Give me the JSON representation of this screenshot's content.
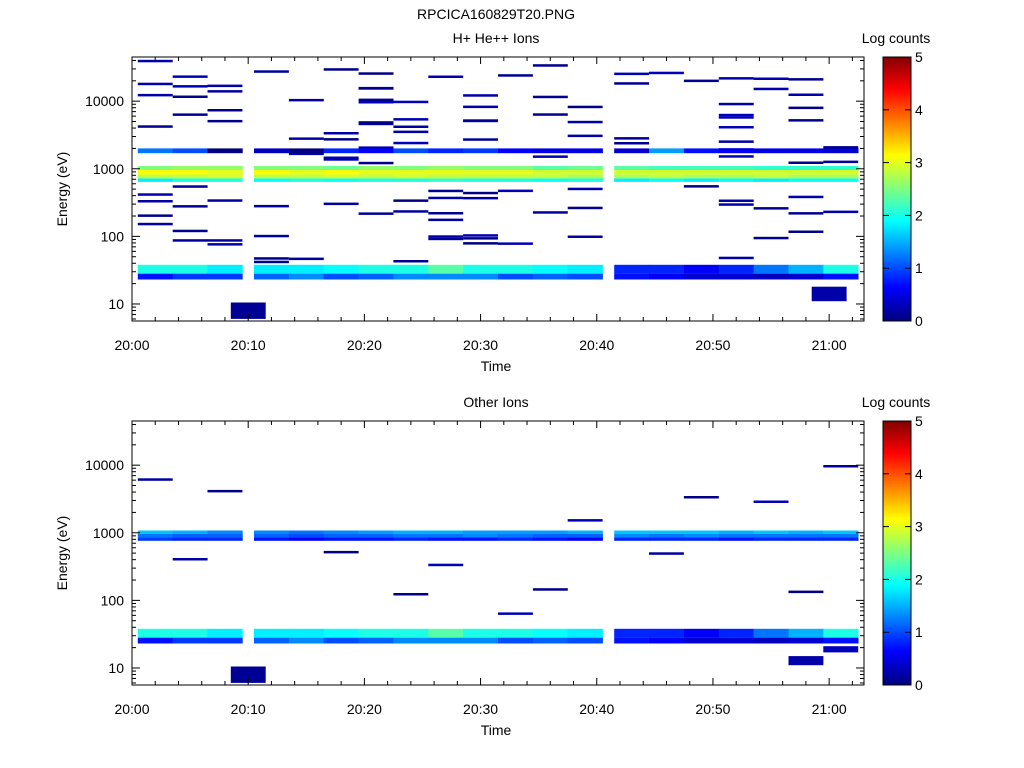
{
  "page": {
    "title": "RPCICA160829T20.PNG"
  },
  "colorbar": {
    "label": "Log counts",
    "ticks": [
      "0",
      "1",
      "2",
      "3",
      "4",
      "5"
    ],
    "colormap": "jet",
    "range": [
      0,
      5
    ]
  },
  "chart_data": [
    {
      "type": "heatmap",
      "title": "H+ He++ Ions",
      "xlabel": "Time",
      "ylabel": "Energy (eV)",
      "xlim": [
        "20:00",
        "21:03"
      ],
      "ylim": [
        5.6,
        45000
      ],
      "yscale": "log",
      "x_ticks": [
        "20:00",
        "20:10",
        "20:20",
        "20:30",
        "20:40",
        "20:50",
        "21:00"
      ],
      "y_ticks": [
        "10",
        "100",
        "1000",
        "10000"
      ],
      "colorbar_label": "Log counts",
      "time_bins": [
        "20:02",
        "20:05",
        "20:08",
        "20:12",
        "20:15",
        "20:18",
        "20:21",
        "20:24",
        "20:27",
        "20:30",
        "20:33",
        "20:36",
        "20:39",
        "20:43",
        "20:46",
        "20:49",
        "20:52",
        "20:55",
        "20:58",
        "21:01"
      ],
      "bands": [
        {
          "energy_range_eV": [
            28,
            38
          ],
          "log_counts": [
            2.0,
            2.0,
            1.8,
            1.8,
            1.8,
            1.9,
            2.0,
            2.0,
            2.3,
            2.0,
            2.0,
            1.9,
            1.8,
            0.8,
            0.8,
            0.6,
            0.8,
            1.2,
            1.5,
            2.0
          ]
        },
        {
          "energy_range_eV": [
            23,
            28
          ],
          "log_counts": [
            0.7,
            0.9,
            0.9,
            1.1,
            1.3,
            1.0,
            1.1,
            1.3,
            1.3,
            1.3,
            1.0,
            1.1,
            1.0,
            0.7,
            0.6,
            0.4,
            0.4,
            0.3,
            0.4,
            0.7
          ]
        },
        {
          "energy_range_eV": [
            640,
            720
          ],
          "log_counts": [
            1.8,
            2.0,
            2.0,
            1.9,
            2.0,
            1.9,
            2.0,
            2.0,
            2.1,
            2.0,
            2.0,
            1.9,
            2.0,
            1.8,
            1.9,
            1.8,
            1.9,
            1.8,
            1.9,
            1.9
          ]
        },
        {
          "energy_range_eV": [
            720,
            820
          ],
          "log_counts": [
            2.8,
            2.8,
            2.9,
            2.8,
            2.8,
            2.9,
            2.8,
            2.9,
            2.8,
            2.8,
            2.8,
            2.8,
            2.7,
            2.7,
            2.8,
            2.7,
            2.7,
            2.8,
            2.7,
            2.7
          ]
        },
        {
          "energy_range_eV": [
            820,
            960
          ],
          "log_counts": [
            3.1,
            3.1,
            3.0,
            3.1,
            3.0,
            3.1,
            3.0,
            3.0,
            3.0,
            3.0,
            3.0,
            2.9,
            2.9,
            2.9,
            2.9,
            2.9,
            2.9,
            2.9,
            2.9,
            2.9
          ]
        },
        {
          "energy_range_eV": [
            960,
            1100
          ],
          "log_counts": [
            2.5,
            2.6,
            2.6,
            2.5,
            2.5,
            2.4,
            2.6,
            2.5,
            2.6,
            2.5,
            2.5,
            2.3,
            2.4,
            2.3,
            2.2,
            2.2,
            2.2,
            2.1,
            2.1,
            2.1
          ]
        },
        {
          "energy_range_eV": [
            1700,
            2000
          ],
          "log_counts": [
            1.2,
            1.0,
            0.0,
            0.3,
            0.0,
            0.8,
            0.6,
            1.0,
            0.8,
            0.9,
            0.6,
            0.5,
            0.5,
            0.4,
            1.4,
            0.7,
            0.6,
            0.5,
            0.5,
            0.4
          ]
        }
      ],
      "isolated_low_energy_bins": [
        {
          "time": "20:10",
          "energy_range_eV": [
            6,
            10.5
          ],
          "log_counts": 0.1
        },
        {
          "time": "21:00",
          "energy_range_eV": [
            11,
            18
          ],
          "log_counts": 0.2
        }
      ],
      "sparse_counts": "scattered single-count (log 0–0.3) bins at many energies between 40 eV and 40000 eV"
    },
    {
      "type": "heatmap",
      "title": "Other Ions",
      "xlabel": "Time",
      "ylabel": "Energy (eV)",
      "xlim": [
        "20:00",
        "21:03"
      ],
      "ylim": [
        5.6,
        45000
      ],
      "yscale": "log",
      "x_ticks": [
        "20:00",
        "20:10",
        "20:20",
        "20:30",
        "20:40",
        "20:50",
        "21:00"
      ],
      "y_ticks": [
        "10",
        "100",
        "1000",
        "10000"
      ],
      "colorbar_label": "Log counts",
      "time_bins": [
        "20:02",
        "20:05",
        "20:08",
        "20:12",
        "20:15",
        "20:18",
        "20:21",
        "20:24",
        "20:27",
        "20:30",
        "20:33",
        "20:36",
        "20:39",
        "20:43",
        "20:46",
        "20:49",
        "20:52",
        "20:55",
        "20:58",
        "21:01"
      ],
      "bands": [
        {
          "energy_range_eV": [
            28,
            38
          ],
          "log_counts": [
            2.0,
            2.0,
            1.8,
            1.8,
            1.8,
            1.9,
            2.0,
            2.0,
            2.3,
            2.0,
            2.0,
            1.9,
            1.8,
            0.8,
            0.8,
            0.6,
            0.8,
            1.2,
            1.5,
            2.0
          ]
        },
        {
          "energy_range_eV": [
            23,
            28
          ],
          "log_counts": [
            0.7,
            0.9,
            0.9,
            1.1,
            1.3,
            1.0,
            1.1,
            1.3,
            1.3,
            1.3,
            1.0,
            1.1,
            1.0,
            0.7,
            0.6,
            0.4,
            0.4,
            0.3,
            0.4,
            0.7
          ]
        },
        {
          "energy_range_eV": [
            760,
            860
          ],
          "log_counts": [
            0.9,
            0.8,
            0.8,
            0.7,
            0.6,
            0.7,
            0.7,
            0.8,
            0.7,
            0.7,
            0.8,
            0.7,
            0.6,
            0.8,
            0.8,
            0.8,
            0.7,
            0.8,
            0.8,
            0.8
          ]
        },
        {
          "energy_range_eV": [
            860,
            960
          ],
          "log_counts": [
            1.2,
            1.1,
            1.1,
            1.1,
            1.0,
            1.1,
            1.1,
            1.2,
            1.2,
            1.3,
            1.2,
            1.1,
            1.1,
            1.3,
            1.2,
            1.3,
            1.2,
            1.2,
            1.2,
            1.2
          ]
        },
        {
          "energy_range_eV": [
            960,
            1080
          ],
          "log_counts": [
            1.6,
            1.5,
            1.3,
            1.3,
            1.2,
            1.3,
            1.4,
            1.5,
            1.5,
            1.4,
            1.4,
            1.4,
            1.5,
            1.6,
            1.6,
            1.6,
            1.5,
            1.6,
            1.5,
            1.6
          ]
        }
      ],
      "isolated_low_energy_bins": [
        {
          "time": "20:10",
          "energy_range_eV": [
            6,
            10.5
          ],
          "log_counts": 0.1
        },
        {
          "time": "20:58",
          "energy_range_eV": [
            11,
            15
          ],
          "log_counts": 0.2
        },
        {
          "time": "21:01",
          "energy_range_eV": [
            17,
            21
          ],
          "log_counts": 0.3
        }
      ],
      "sparse_counts": "scattered single-count (log 0–0.3) bins between 50 eV and 20000 eV"
    }
  ]
}
